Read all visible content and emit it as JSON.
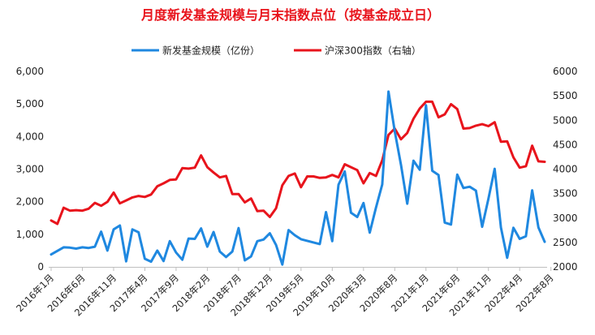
{
  "chart_data": {
    "type": "line",
    "title": "月度新发基金规模与月末指数点位（按基金成立日）",
    "x_axis": {
      "tick_labels": [
        "2016年1月",
        "2016年6月",
        "2016年11月",
        "2017年4月",
        "2017年9月",
        "2018年2月",
        "2018年7月",
        "2018年12月",
        "2019年5月",
        "2019年10月",
        "2020年3月",
        "2020年8月",
        "2021年1月",
        "2021年6月",
        "2021年11月",
        "2022年4月",
        "2022年8月"
      ]
    },
    "y_left": {
      "min": 0,
      "max": 6000,
      "step": 1000,
      "tick_labels": [
        "0",
        "1,000",
        "2,000",
        "3,000",
        "4,000",
        "5,000",
        "6,000"
      ]
    },
    "y_right": {
      "min": 2000,
      "max": 6000,
      "step": 500,
      "tick_labels": [
        "2000",
        "2500",
        "3000",
        "3500",
        "4000",
        "4500",
        "5000",
        "5500",
        "6000"
      ]
    },
    "grid": false,
    "legend_position": "top",
    "series": [
      {
        "name": "新发基金规模（亿份）",
        "axis": "left",
        "color": "#1f88e0",
        "values": [
          380,
          490,
          600,
          590,
          560,
          600,
          580,
          620,
          1080,
          500,
          1150,
          1270,
          170,
          1150,
          1060,
          250,
          160,
          500,
          180,
          790,
          440,
          220,
          870,
          860,
          1180,
          620,
          1070,
          470,
          300,
          470,
          1190,
          200,
          320,
          790,
          840,
          1030,
          670,
          70,
          1130,
          970,
          850,
          800,
          750,
          700,
          1680,
          790,
          2520,
          2930,
          1660,
          1530,
          1960,
          1050,
          1820,
          2530,
          5380,
          4160,
          3130,
          1940,
          3260,
          2980,
          4960,
          2950,
          2820,
          1360,
          1300,
          2830,
          2420,
          2460,
          2340,
          1230,
          2090,
          3010,
          1210,
          280,
          1200,
          860,
          940,
          2350,
          1210,
          770
        ]
      },
      {
        "name": "沪深300指数（右轴）",
        "axis": "right",
        "color": "#e8141c",
        "values": [
          2950,
          2880,
          3210,
          3150,
          3160,
          3150,
          3190,
          3310,
          3250,
          3330,
          3520,
          3300,
          3360,
          3420,
          3450,
          3430,
          3480,
          3650,
          3710,
          3780,
          3790,
          4020,
          4010,
          4030,
          4280,
          4040,
          3930,
          3830,
          3860,
          3490,
          3490,
          3320,
          3400,
          3140,
          3150,
          3020,
          3200,
          3670,
          3860,
          3910,
          3630,
          3850,
          3850,
          3820,
          3830,
          3880,
          3830,
          4100,
          4040,
          3980,
          3710,
          3920,
          3860,
          4180,
          4700,
          4830,
          4610,
          4740,
          5030,
          5240,
          5380,
          5380,
          5060,
          5120,
          5330,
          5230,
          4830,
          4840,
          4890,
          4920,
          4880,
          4960,
          4560,
          4570,
          4240,
          4030,
          4060,
          4480,
          4160,
          4150
        ]
      }
    ]
  }
}
